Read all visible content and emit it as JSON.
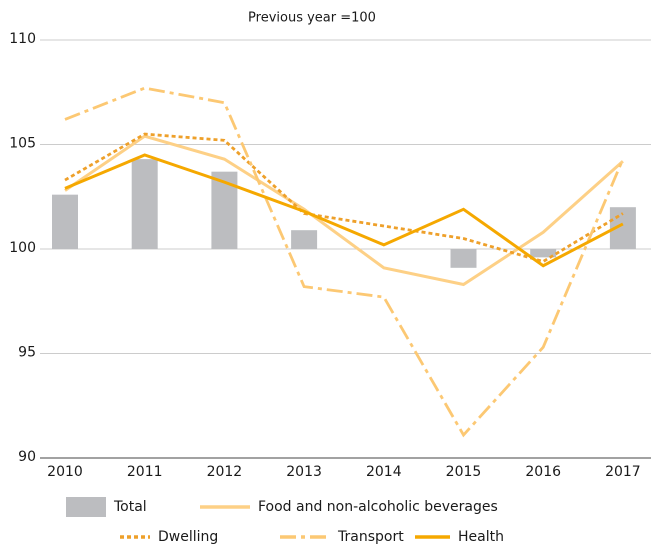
{
  "chart_data": {
    "type": "bar",
    "subtitle": "Previous year =100",
    "categories": [
      "2010",
      "2011",
      "2012",
      "2013",
      "2014",
      "2015",
      "2016",
      "2017"
    ],
    "ylim": [
      90,
      110
    ],
    "yticks": [
      90,
      95,
      100,
      105,
      110
    ],
    "grid": true,
    "baseline": 100,
    "series": [
      {
        "name": "Total",
        "type": "bar",
        "color": "#bcbdc0",
        "values": [
          102.6,
          104.3,
          103.7,
          100.9,
          100.0,
          99.1,
          99.6,
          102.0
        ]
      },
      {
        "name": "Food and non-alcoholic beverages",
        "type": "line",
        "dash": "solid",
        "color": "#fdd086",
        "values": [
          102.8,
          105.4,
          104.3,
          101.9,
          99.1,
          98.3,
          100.8,
          104.2
        ]
      },
      {
        "name": "Dwelling",
        "type": "line",
        "dash": "dotted",
        "color": "#eea02a",
        "values": [
          103.3,
          105.5,
          105.2,
          101.7,
          101.1,
          100.5,
          99.4,
          101.7
        ]
      },
      {
        "name": "Transport",
        "type": "line",
        "dash": "dashdot",
        "color": "#fcc873",
        "values": [
          106.2,
          107.7,
          107.0,
          98.2,
          97.7,
          91.1,
          95.3,
          104.3
        ]
      },
      {
        "name": "Health",
        "type": "line",
        "dash": "solid",
        "color": "#f5a800",
        "values": [
          102.9,
          104.5,
          103.2,
          101.8,
          100.2,
          101.9,
          99.2,
          101.2
        ]
      }
    ]
  }
}
